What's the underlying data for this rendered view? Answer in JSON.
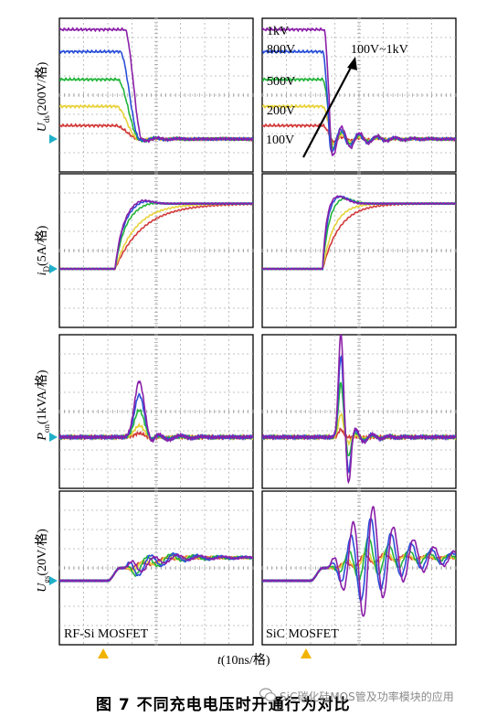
{
  "panel_labels": {
    "left": "RF-Si MOSFET",
    "right": "SiC MOSFET"
  },
  "row_labels": [
    {
      "sym": "U",
      "sub": "ds",
      "unit": "(200V/格)"
    },
    {
      "sym": "i",
      "sub": "D",
      "unit": "(5A/格)"
    },
    {
      "sym": "P",
      "sub": "on",
      "unit": "(1kVA/格)"
    },
    {
      "sym": "U",
      "sub": "gs",
      "unit": "(20V/格)"
    }
  ],
  "x_label": {
    "sym": "t",
    "unit": "(10ns/格)"
  },
  "voltage_labels": [
    "1kV",
    "800V",
    "500V",
    "200V",
    "100V"
  ],
  "annotation": "100V~1kV",
  "caption": "图 7    不同充电电压时开通行为对比",
  "watermark": "SiC碳化硅MOS管及功率模块的应用",
  "colors": {
    "100V": "#d23a3a",
    "200V": "#e8d23a",
    "500V": "#22b43a",
    "800V": "#2a4fd8",
    "1kV": "#8a1fa8",
    "marker": "#1fb0c8",
    "trigger": "#f2b300"
  },
  "chart_data": {
    "type": "line",
    "x_unit": "10ns/div",
    "series": [
      {
        "name": "1kV"
      },
      {
        "name": "800V"
      },
      {
        "name": "500V"
      },
      {
        "name": "200V"
      },
      {
        "name": "100V"
      }
    ],
    "rows": [
      {
        "quantity": "Uds",
        "scale": "200V/div",
        "left": {
          "initial_div": [
            5.7,
            4.55,
            3.1,
            1.7,
            0.7
          ],
          "final_div": 0,
          "fall_start_div": [
            2.7,
            2.5,
            2.4,
            2.35,
            2.3
          ],
          "fall_ns": [
            8,
            9,
            10,
            10,
            11
          ]
        },
        "right": {
          "initial_div": [
            5.7,
            4.55,
            3.1,
            1.7,
            0.7
          ],
          "final_div": 0,
          "fall_start_div": [
            2.55,
            2.5,
            2.5,
            2.5,
            2.5
          ],
          "fall_ns": [
            4,
            4,
            5,
            5,
            5
          ],
          "ringing_div": [
            1.0,
            0.8,
            0.6,
            0.35,
            0.15
          ]
        }
      },
      {
        "quantity": "iD",
        "scale": "5A/div",
        "left": {
          "final_div": 3.4,
          "rise_start_div": 2.3,
          "rise_ns": [
            12,
            13,
            16,
            22,
            30
          ],
          "overshoot_div": [
            0.25,
            0.2,
            0.1,
            0.0,
            0.0
          ]
        },
        "right": {
          "final_div": 3.4,
          "rise_start_div": 2.5,
          "rise_ns": [
            6,
            7,
            9,
            12,
            18
          ],
          "overshoot_div": [
            0.45,
            0.45,
            0.35,
            0.0,
            0.0
          ]
        }
      },
      {
        "quantity": "Pon",
        "scale": "1kVA/div",
        "left": {
          "peak_div": [
            2.9,
            2.2,
            1.4,
            0.6,
            0.2
          ],
          "peak_at_div": 3.3
        },
        "right": {
          "peak_div": [
            5.4,
            4.2,
            2.8,
            1.2,
            0.4
          ],
          "peak_at_div": 3.25,
          "undershoot_div": [
            -2.4,
            -1.8,
            -1.0,
            -0.3,
            0.0
          ]
        }
      },
      {
        "quantity": "Ugs",
        "scale": "20V/div",
        "left": {
          "step_div": 1.2,
          "step_at_div": 2.0,
          "ringing_div": [
            0.5,
            0.7,
            0.6,
            0.3,
            0.2
          ]
        },
        "right": {
          "step_div": 1.2,
          "step_at_div": 2.0,
          "ringing_div": [
            3.2,
            2.4,
            1.2,
            0.5,
            0.3
          ]
        }
      }
    ]
  }
}
